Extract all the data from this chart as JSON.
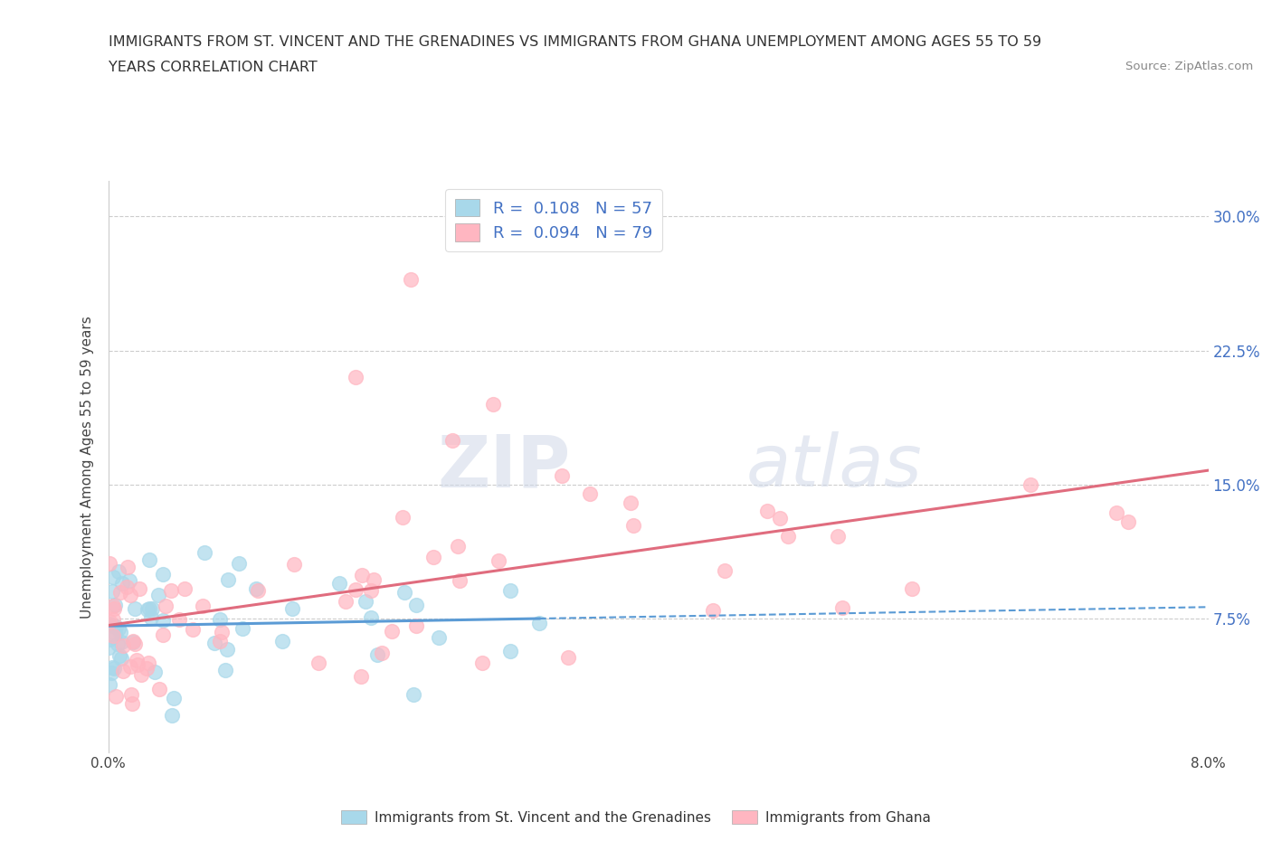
{
  "title_line1": "IMMIGRANTS FROM ST. VINCENT AND THE GRENADINES VS IMMIGRANTS FROM GHANA UNEMPLOYMENT AMONG AGES 55 TO 59",
  "title_line2": "YEARS CORRELATION CHART",
  "source_text": "Source: ZipAtlas.com",
  "ylabel": "Unemployment Among Ages 55 to 59 years",
  "xlim": [
    0.0,
    0.08
  ],
  "ylim": [
    0.0,
    0.32
  ],
  "color_sv": "#a8d8ea",
  "color_gh": "#ffb6c1",
  "line_color_sv": "#5b9bd5",
  "line_color_gh": "#e06c7e",
  "R_sv": 0.108,
  "N_sv": 57,
  "R_gh": 0.094,
  "N_gh": 79,
  "legend_label_sv": "Immigrants from St. Vincent and the Grenadines",
  "legend_label_gh": "Immigrants from Ghana",
  "watermark_zip": "ZIP",
  "watermark_atlas": "atlas",
  "legend_text_color": "#4472c4",
  "right_tick_color": "#4472c4",
  "grid_color": "#cccccc"
}
